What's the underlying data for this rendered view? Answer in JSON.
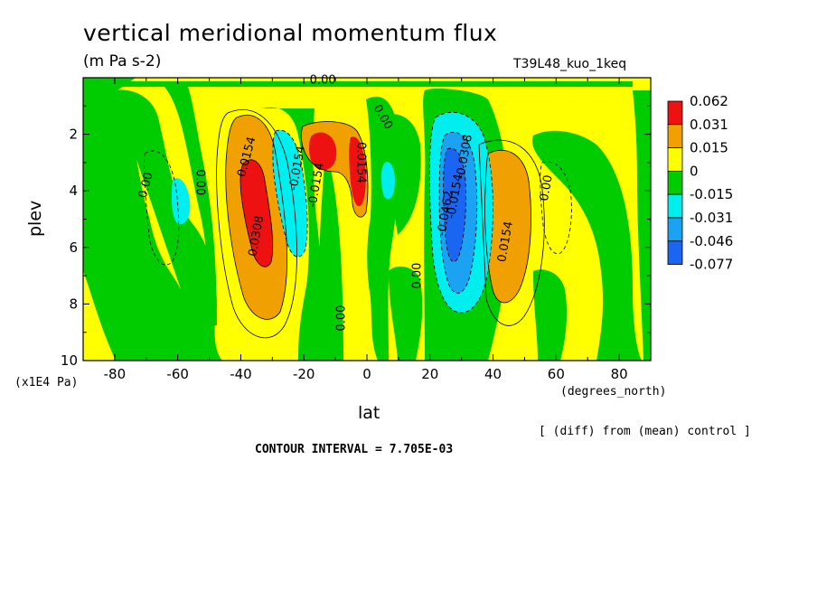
{
  "chart_data": {
    "type": "heatmap",
    "title": "vertical meridional momentum flux",
    "units": "(m Pa s-2)",
    "run_label": "T39L48_kuo_1keq",
    "xlabel": "lat",
    "x_units": "(degrees_north)",
    "ylabel": "plev",
    "y_units": "(x1E4 Pa)",
    "x_range": [
      -90,
      90
    ],
    "y_range": [
      0,
      10
    ],
    "y_inverted": true,
    "x_ticks": [
      "-80",
      "-60",
      "-40",
      "-20",
      "0",
      "20",
      "40",
      "60",
      "80"
    ],
    "x_tick_values": [
      -80,
      -60,
      -40,
      -20,
      0,
      20,
      40,
      60,
      80
    ],
    "y_ticks": [
      "2",
      "4",
      "6",
      "8",
      "10"
    ],
    "y_tick_values": [
      2,
      4,
      6,
      8,
      10
    ],
    "colorbar": {
      "labels": [
        "0.062",
        "0.031",
        "0.015",
        "0",
        "-0.015",
        "-0.031",
        "-0.046",
        "-0.077"
      ],
      "colors": [
        "#ee1111",
        "#f0a000",
        "#ffff00",
        "#00cc00",
        "#00eeee",
        "#1ba2f2",
        "#1a66f2"
      ]
    },
    "contour_labels": [
      {
        "text": "0.00",
        "lon": -70,
        "plev": 3.8,
        "angle": -75
      },
      {
        "text": "0.00",
        "lon": -53,
        "plev": 3.7,
        "angle": 90
      },
      {
        "text": "0.0154",
        "lon": -38,
        "plev": 2.8,
        "angle": -75
      },
      {
        "text": "0.0308",
        "lon": -35,
        "plev": 5.6,
        "angle": -80
      },
      {
        "text": "-0.0154",
        "lon": -22,
        "plev": 3.2,
        "angle": -80
      },
      {
        "text": "-0.0154",
        "lon": -16,
        "plev": 3.8,
        "angle": -80
      },
      {
        "text": "0.00",
        "lon": -8,
        "plev": 8.5,
        "angle": -90
      },
      {
        "text": "0.0154",
        "lon": -2,
        "plev": 3.0,
        "angle": 90
      },
      {
        "text": "0.00",
        "lon": -14,
        "plev": 0.1,
        "angle": 0
      },
      {
        "text": "0.00",
        "lon": 5,
        "plev": 1.4,
        "angle": 60
      },
      {
        "text": "0.00",
        "lon": 16,
        "plev": 7.0,
        "angle": -90
      },
      {
        "text": "-0.0462",
        "lon": 25,
        "plev": 4.8,
        "angle": -80
      },
      {
        "text": "-0.0308",
        "lon": 31,
        "plev": 2.8,
        "angle": -80
      },
      {
        "text": "-0.0154",
        "lon": 28,
        "plev": 4.2,
        "angle": -80
      },
      {
        "text": "0.0154",
        "lon": 44,
        "plev": 5.8,
        "angle": -80
      },
      {
        "text": "0.00",
        "lon": 57,
        "plev": 3.9,
        "angle": -80
      }
    ],
    "grid": false
  },
  "note_diff": "[ (diff) from (mean) control ]",
  "contour_interval": "CONTOUR INTERVAL = 7.705E-03"
}
